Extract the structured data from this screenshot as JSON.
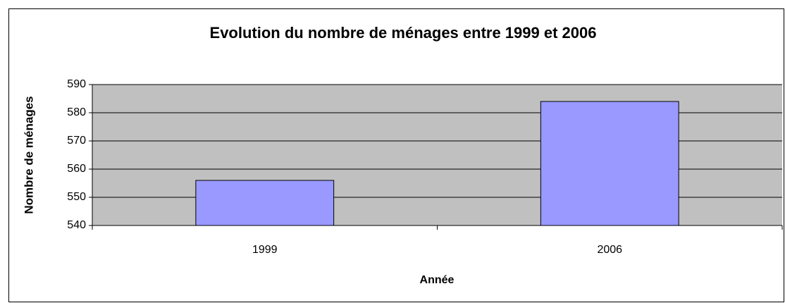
{
  "chart_data": {
    "type": "bar",
    "title": "Evolution du nombre de ménages entre 1999 et 2006",
    "x_label": "Année",
    "y_label": "Nombre de ménages",
    "categories": [
      "1999",
      "2006"
    ],
    "values": [
      556,
      584
    ],
    "color": "#9999ff",
    "ylim": [
      540,
      590
    ],
    "yticks": [
      540,
      550,
      560,
      570,
      580,
      590
    ],
    "grid": true
  }
}
